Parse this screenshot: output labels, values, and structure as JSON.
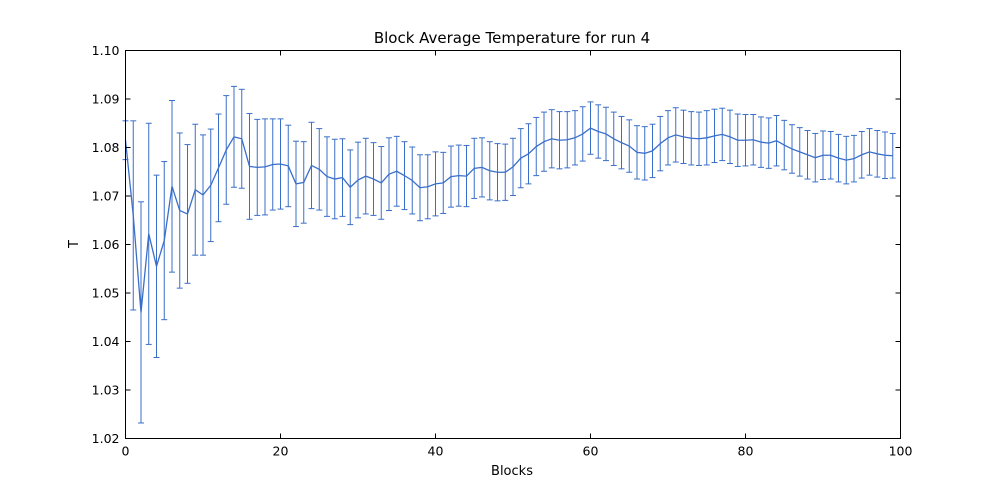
{
  "chart_data": {
    "type": "line",
    "title": "Block Average Temperature for run 4",
    "xlabel": "Blocks",
    "ylabel": "T",
    "xlim": [
      0,
      100
    ],
    "ylim": [
      1.02,
      1.1
    ],
    "xticks": [
      "0",
      "20",
      "40",
      "60",
      "80",
      "100"
    ],
    "yticks": [
      "1.02",
      "1.03",
      "1.04",
      "1.05",
      "1.06",
      "1.07",
      "1.08",
      "1.09",
      "1.10"
    ],
    "grid": false,
    "legend": "none",
    "series": [
      {
        "color": "#3a6fc9",
        "x": [
          0,
          1,
          2,
          3,
          4,
          5,
          6,
          7,
          8,
          9,
          10,
          11,
          12,
          13,
          14,
          15,
          16,
          17,
          18,
          19,
          20,
          21,
          22,
          23,
          24,
          25,
          26,
          27,
          28,
          29,
          30,
          31,
          32,
          33,
          34,
          35,
          36,
          37,
          38,
          39,
          40,
          41,
          42,
          43,
          44,
          45,
          46,
          47,
          48,
          49,
          50,
          51,
          52,
          53,
          54,
          55,
          56,
          57,
          58,
          59,
          60,
          61,
          62,
          63,
          64,
          65,
          66,
          67,
          68,
          69,
          70,
          71,
          72,
          73,
          74,
          75,
          76,
          77,
          78,
          79,
          80,
          81,
          82,
          83,
          84,
          85,
          86,
          87,
          88,
          89,
          90,
          91,
          92,
          93,
          94,
          95,
          96,
          97,
          98,
          99
        ],
        "y": [
          1.0815,
          1.066,
          1.046,
          1.0622,
          1.0555,
          1.0608,
          1.072,
          1.067,
          1.0663,
          1.0713,
          1.0702,
          1.0722,
          1.0758,
          1.0795,
          1.0822,
          1.0818,
          1.0761,
          1.0759,
          1.076,
          1.0765,
          1.0766,
          1.0762,
          1.0725,
          1.0728,
          1.0763,
          1.0755,
          1.074,
          1.0735,
          1.0738,
          1.0718,
          1.0733,
          1.0741,
          1.0735,
          1.0727,
          1.0745,
          1.0751,
          1.0742,
          1.0732,
          1.0717,
          1.0719,
          1.0725,
          1.0727,
          1.074,
          1.0742,
          1.0741,
          1.0757,
          1.0759,
          1.0752,
          1.0749,
          1.0749,
          1.076,
          1.0778,
          1.0787,
          1.0802,
          1.0812,
          1.0818,
          1.0815,
          1.0816,
          1.082,
          1.0828,
          1.084,
          1.0833,
          1.0828,
          1.0818,
          1.081,
          1.0803,
          1.079,
          1.0788,
          1.0793,
          1.0808,
          1.082,
          1.0826,
          1.0822,
          1.0819,
          1.0818,
          1.082,
          1.0824,
          1.0827,
          1.0822,
          1.0815,
          1.0815,
          1.0816,
          1.0811,
          1.0809,
          1.0814,
          1.0805,
          1.0797,
          1.0791,
          1.0785,
          1.0779,
          1.0784,
          1.0784,
          1.0778,
          1.0774,
          1.0777,
          1.0785,
          1.0791,
          1.0787,
          1.0784,
          1.0783
        ],
        "err": [
          0.004,
          0.0195,
          0.0228,
          0.0228,
          0.0188,
          0.0163,
          0.0177,
          0.016,
          0.0143,
          0.0135,
          0.0124,
          0.0116,
          0.0111,
          0.0112,
          0.0104,
          0.0102,
          0.0109,
          0.0099,
          0.0099,
          0.0094,
          0.0093,
          0.0084,
          0.0088,
          0.0084,
          0.0089,
          0.0084,
          0.0082,
          0.0082,
          0.008,
          0.0077,
          0.0078,
          0.0078,
          0.0075,
          0.0075,
          0.0075,
          0.0072,
          0.007,
          0.0069,
          0.0068,
          0.0066,
          0.0066,
          0.0063,
          0.0063,
          0.0063,
          0.0063,
          0.0062,
          0.0061,
          0.006,
          0.0059,
          0.0058,
          0.0059,
          0.0061,
          0.0062,
          0.006,
          0.0061,
          0.006,
          0.0059,
          0.0058,
          0.0056,
          0.0056,
          0.0054,
          0.0055,
          0.0055,
          0.0055,
          0.0054,
          0.0054,
          0.0055,
          0.0055,
          0.0055,
          0.0056,
          0.0056,
          0.0056,
          0.0055,
          0.0055,
          0.0055,
          0.0056,
          0.0055,
          0.0054,
          0.0055,
          0.0054,
          0.0053,
          0.0052,
          0.0052,
          0.0052,
          0.0052,
          0.0051,
          0.005,
          0.005,
          0.005,
          0.005,
          0.005,
          0.0049,
          0.0049,
          0.0049,
          0.0048,
          0.0048,
          0.0048,
          0.0048,
          0.0048,
          0.0046
        ]
      }
    ]
  }
}
